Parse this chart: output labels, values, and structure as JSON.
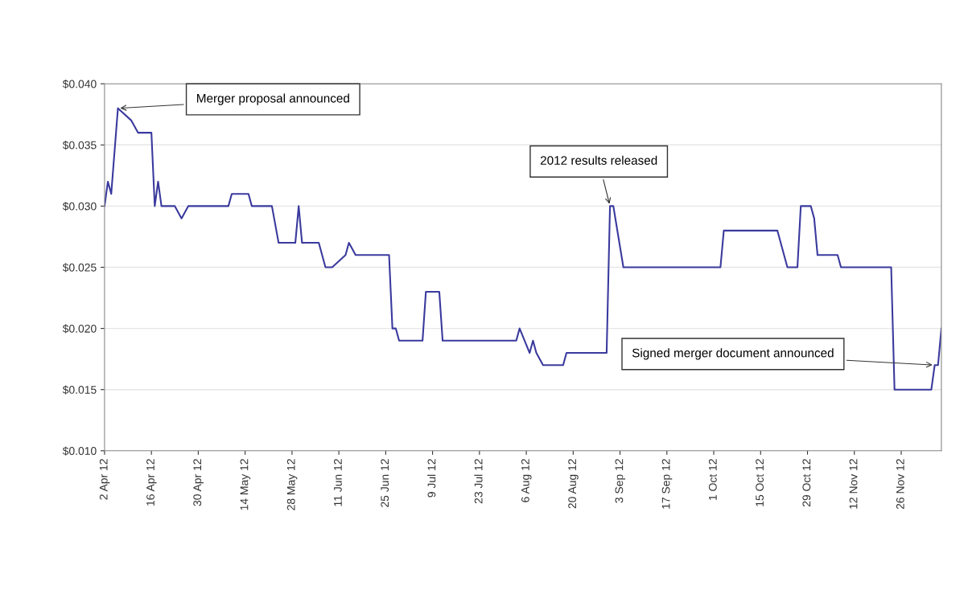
{
  "chart_data": {
    "type": "line",
    "x": [
      "2012-04-02",
      "2012-04-03",
      "2012-04-04",
      "2012-04-06",
      "2012-04-10",
      "2012-04-12",
      "2012-04-16",
      "2012-04-17",
      "2012-04-18",
      "2012-04-19",
      "2012-04-23",
      "2012-04-25",
      "2012-04-27",
      "2012-05-09",
      "2012-05-10",
      "2012-05-15",
      "2012-05-16",
      "2012-05-22",
      "2012-05-24",
      "2012-05-29",
      "2012-05-30",
      "2012-05-31",
      "2012-06-05",
      "2012-06-07",
      "2012-06-09",
      "2012-06-13",
      "2012-06-14",
      "2012-06-16",
      "2012-06-26",
      "2012-06-27",
      "2012-06-28",
      "2012-06-29",
      "2012-07-06",
      "2012-07-07",
      "2012-07-11",
      "2012-07-12",
      "2012-08-03",
      "2012-08-04",
      "2012-08-07",
      "2012-08-08",
      "2012-08-09",
      "2012-08-11",
      "2012-08-17",
      "2012-08-18",
      "2012-08-30",
      "2012-08-31",
      "2012-09-01",
      "2012-09-04",
      "2012-10-03",
      "2012-10-04",
      "2012-10-20",
      "2012-10-23",
      "2012-10-26",
      "2012-10-27",
      "2012-10-30",
      "2012-10-31",
      "2012-11-01",
      "2012-11-07",
      "2012-11-08",
      "2012-11-23",
      "2012-11-24",
      "2012-12-05",
      "2012-12-06",
      "2012-12-07",
      "2012-12-08"
    ],
    "series": [
      {
        "color": "#3a3a9e",
        "values": [
          0.03,
          0.032,
          0.031,
          0.038,
          0.037,
          0.036,
          0.036,
          0.03,
          0.032,
          0.03,
          0.03,
          0.029,
          0.03,
          0.03,
          0.031,
          0.031,
          0.03,
          0.03,
          0.027,
          0.027,
          0.03,
          0.027,
          0.027,
          0.025,
          0.025,
          0.026,
          0.027,
          0.026,
          0.026,
          0.02,
          0.02,
          0.019,
          0.019,
          0.023,
          0.023,
          0.019,
          0.019,
          0.02,
          0.018,
          0.019,
          0.018,
          0.017,
          0.017,
          0.018,
          0.018,
          0.03,
          0.03,
          0.025,
          0.025,
          0.028,
          0.028,
          0.025,
          0.025,
          0.03,
          0.03,
          0.029,
          0.026,
          0.026,
          0.025,
          0.025,
          0.015,
          0.015,
          0.017,
          0.017,
          0.02
        ]
      }
    ],
    "xlim": [
      "2012-04-02",
      "2012-12-08"
    ],
    "xticks": [
      {
        "value": "2012-04-02",
        "label": "2 Apr 12"
      },
      {
        "value": "2012-04-16",
        "label": "16 Apr 12"
      },
      {
        "value": "2012-04-30",
        "label": "30 Apr 12"
      },
      {
        "value": "2012-05-14",
        "label": "14 May 12"
      },
      {
        "value": "2012-05-28",
        "label": "28 May 12"
      },
      {
        "value": "2012-06-11",
        "label": "11 Jun 12"
      },
      {
        "value": "2012-06-25",
        "label": "25 Jun 12"
      },
      {
        "value": "2012-07-09",
        "label": "9 Jul 12"
      },
      {
        "value": "2012-07-23",
        "label": "23 Jul 12"
      },
      {
        "value": "2012-08-06",
        "label": "6 Aug 12"
      },
      {
        "value": "2012-08-20",
        "label": "20 Aug 12"
      },
      {
        "value": "2012-09-03",
        "label": "3 Sep 12"
      },
      {
        "value": "2012-09-17",
        "label": "17 Sep 12"
      },
      {
        "value": "2012-10-01",
        "label": "1 Oct 12"
      },
      {
        "value": "2012-10-15",
        "label": "15 Oct 12"
      },
      {
        "value": "2012-10-29",
        "label": "29 Oct 12"
      },
      {
        "value": "2012-11-12",
        "label": "12 Nov 12"
      },
      {
        "value": "2012-11-26",
        "label": "26 Nov 12"
      }
    ],
    "ylim": [
      0.01,
      0.04
    ],
    "yticks": [
      {
        "value": 0.01,
        "label": "$0.010"
      },
      {
        "value": 0.015,
        "label": "$0.015"
      },
      {
        "value": 0.02,
        "label": "$0.020"
      },
      {
        "value": 0.025,
        "label": "$0.025"
      },
      {
        "value": 0.03,
        "label": "$0.030"
      },
      {
        "value": 0.035,
        "label": "$0.035"
      },
      {
        "value": 0.04,
        "label": "$0.040"
      }
    ],
    "grid": "y",
    "marker": "none",
    "line_style": "solid",
    "annotations": [
      {
        "text": "Merger proposal announced",
        "x": "2012-04-06",
        "y": 0.038
      },
      {
        "text": "2012 results released",
        "x": "2012-08-31",
        "y": 0.03
      },
      {
        "text": "Signed merger document announced",
        "x": "2012-12-06",
        "y": 0.017
      }
    ]
  }
}
